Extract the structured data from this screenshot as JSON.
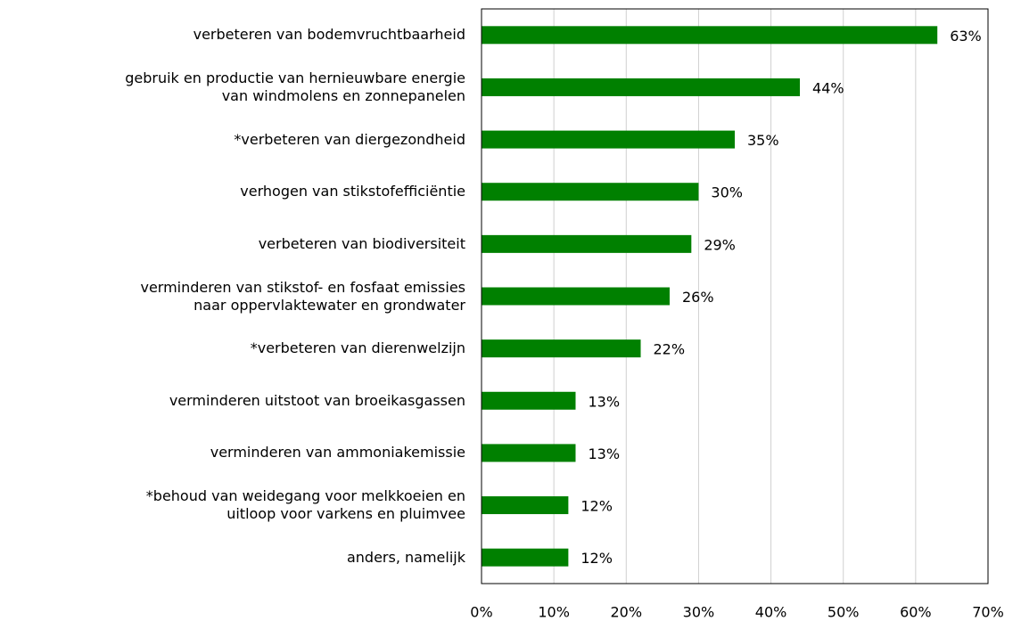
{
  "chart_data": {
    "type": "bar",
    "orientation": "horizontal",
    "categories": [
      "verbeteren van bodemvruchtbaarheid",
      "gebruik en productie van hernieuwbare energie\nvan windmolens en zonnepanelen",
      "*verbeteren van diergezondheid",
      "verhogen van stikstofefficiëntie",
      "verbeteren van biodiversiteit",
      "verminderen van stikstof- en fosfaat emissies\nnaar oppervlaktewater en grondwater",
      "*verbeteren van dierenwelzijn",
      "verminderen uitstoot van broeikasgassen",
      "verminderen van ammoniakemissie",
      "*behoud van weidegang voor melkkoeien en\nuitloop voor varkens en pluimvee",
      "anders, namelijk"
    ],
    "values": [
      63,
      44,
      35,
      30,
      29,
      26,
      22,
      13,
      13,
      12,
      12
    ],
    "value_labels": [
      "63%",
      "44%",
      "35%",
      "30%",
      "29%",
      "26%",
      "22%",
      "13%",
      "13%",
      "12%",
      "12%"
    ],
    "color": "#008000",
    "xlim": [
      0,
      70
    ],
    "xticks": [
      {
        "value": 0,
        "label": "0%"
      },
      {
        "value": 10,
        "label": "10%"
      },
      {
        "value": 20,
        "label": "20%"
      },
      {
        "value": 30,
        "label": "30%"
      },
      {
        "value": 40,
        "label": "40%"
      },
      {
        "value": 50,
        "label": "50%"
      },
      {
        "value": 60,
        "label": "60%"
      },
      {
        "value": 70,
        "label": "70%"
      }
    ],
    "grid": true
  }
}
